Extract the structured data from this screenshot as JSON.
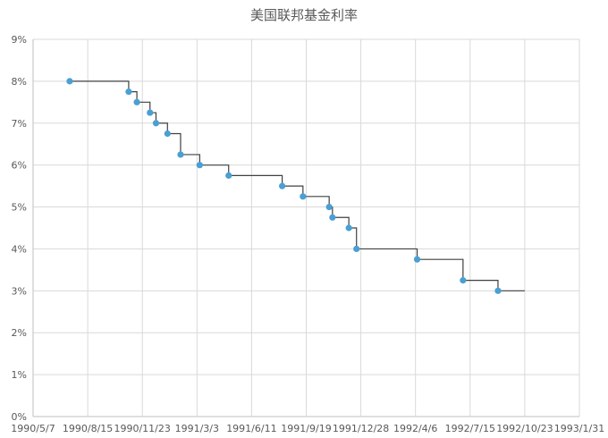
{
  "chart_data": {
    "type": "line",
    "title": "美国联邦基金利率",
    "xlabel": "",
    "ylabel": "",
    "x_tick_labels": [
      "1990/5/7",
      "1990/8/15",
      "1990/11/23",
      "1991/3/3",
      "1991/6/11",
      "1991/9/19",
      "1991/12/28",
      "1992/4/6",
      "1992/7/15",
      "1992/10/23",
      "1993/1/31"
    ],
    "y_tick_labels": [
      "0%",
      "1%",
      "2%",
      "3%",
      "4%",
      "5%",
      "6%",
      "7%",
      "8%",
      "9%"
    ],
    "xlim": [
      "1990-05-07",
      "1993-01-31"
    ],
    "ylim": [
      0,
      9
    ],
    "grid": true,
    "legend": "none",
    "step": true,
    "line_color": "#404040",
    "marker_color": "#4a9fd4",
    "series": [
      {
        "x": [
          "1990-07-13",
          "1990-10-29",
          "1990-11-13",
          "1990-12-07",
          "1990-12-18",
          "1991-01-08",
          "1991-02-01",
          "1991-03-08",
          "1991-04-30",
          "1991-08-06",
          "1991-09-13",
          "1991-10-31",
          "1991-11-06",
          "1991-12-06",
          "1991-12-20",
          "1992-04-09",
          "1992-07-02",
          "1992-09-04"
        ],
        "values": [
          8.0,
          7.75,
          7.5,
          7.25,
          7.0,
          6.75,
          6.25,
          6.0,
          5.75,
          5.5,
          5.25,
          5.0,
          4.75,
          4.5,
          4.0,
          3.75,
          3.25,
          3.0
        ],
        "end_x": "1992-10-23"
      }
    ]
  }
}
